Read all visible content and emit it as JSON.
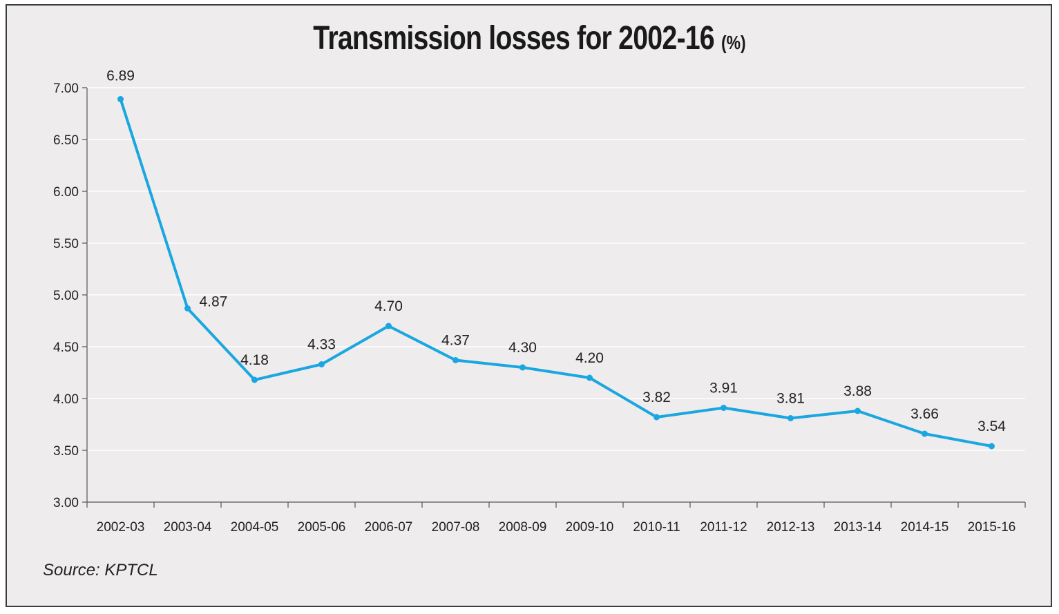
{
  "title": "Transmission losses for 2002-16",
  "title_unit": "(%)",
  "source": "Source: KPTCL",
  "colors": {
    "line": "#1aa6e0",
    "grid": "#ffffff",
    "axis": "#555555",
    "background": "#eeecec"
  },
  "chart_data": {
    "type": "line",
    "title": "Transmission losses for 2002-16 (%)",
    "xlabel": "",
    "ylabel": "",
    "categories": [
      "2002-03",
      "2003-04",
      "2004-05",
      "2005-06",
      "2006-07",
      "2007-08",
      "2008-09",
      "2009-10",
      "2010-11",
      "2011-12",
      "2012-13",
      "2013-14",
      "2014-15",
      "2015-16"
    ],
    "values": [
      6.89,
      4.87,
      4.18,
      4.33,
      4.7,
      4.37,
      4.3,
      4.2,
      3.82,
      3.91,
      3.81,
      3.88,
      3.66,
      3.54
    ],
    "data_labels": [
      "6.89",
      "4.87",
      "4.18",
      "4.33",
      "4.70",
      "4.37",
      "4.30",
      "4.20",
      "3.82",
      "3.91",
      "3.81",
      "3.88",
      "3.66",
      "3.54"
    ],
    "ylim": [
      3.0,
      7.0
    ],
    "yticks": [
      "3.00",
      "3.50",
      "4.00",
      "4.50",
      "5.00",
      "5.50",
      "6.00",
      "6.50",
      "7.00"
    ],
    "ytick_values": [
      3.0,
      3.5,
      4.0,
      4.5,
      5.0,
      5.5,
      6.0,
      6.5,
      7.0
    ],
    "grid": true,
    "legend": "none"
  }
}
